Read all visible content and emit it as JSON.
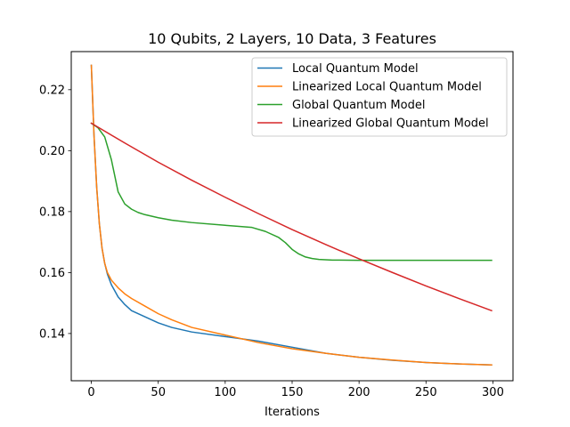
{
  "chart_data": {
    "type": "line",
    "title": "10 Qubits, 2 Layers, 10 Data, 3 Features",
    "xlabel": "Iterations",
    "ylabel": "",
    "xlim": [
      -15,
      315
    ],
    "ylim": [
      0.1245,
      0.2325
    ],
    "xticks": [
      0,
      50,
      100,
      150,
      200,
      250,
      300
    ],
    "yticks": [
      0.14,
      0.16,
      0.18,
      0.2,
      0.22
    ],
    "ytick_labels": [
      "0.14",
      "0.16",
      "0.18",
      "0.20",
      "0.22"
    ],
    "grid": false,
    "legend_position": "top-right",
    "series": [
      {
        "name": "Local Quantum Model",
        "color": "#1f77b4",
        "x": [
          0,
          2,
          4,
          6,
          8,
          10,
          12,
          15,
          20,
          25,
          30,
          40,
          50,
          60,
          75,
          100,
          125,
          150,
          175,
          200,
          225,
          250,
          275,
          299
        ],
        "y": [
          0.228,
          0.205,
          0.188,
          0.176,
          0.168,
          0.163,
          0.1595,
          0.156,
          0.152,
          0.1495,
          0.1475,
          0.1455,
          0.1435,
          0.142,
          0.1405,
          0.139,
          0.1375,
          0.1355,
          0.1335,
          0.1322,
          0.1312,
          0.1305,
          0.13,
          0.1297
        ]
      },
      {
        "name": "Linearized Local Quantum Model",
        "color": "#ff7f0e",
        "x": [
          0,
          2,
          4,
          6,
          8,
          10,
          12,
          15,
          20,
          25,
          30,
          40,
          50,
          60,
          75,
          100,
          125,
          150,
          175,
          200,
          225,
          250,
          275,
          299
        ],
        "y": [
          0.228,
          0.205,
          0.188,
          0.176,
          0.168,
          0.163,
          0.16,
          0.1575,
          0.155,
          0.153,
          0.1515,
          0.149,
          0.1465,
          0.1445,
          0.142,
          0.1395,
          0.137,
          0.135,
          0.1335,
          0.1322,
          0.1313,
          0.1305,
          0.13,
          0.1297
        ]
      },
      {
        "name": "Global Quantum Model",
        "color": "#2ca02c",
        "x": [
          0,
          5,
          10,
          15,
          20,
          25,
          30,
          35,
          40,
          50,
          60,
          75,
          100,
          120,
          130,
          140,
          145,
          150,
          155,
          160,
          165,
          170,
          180,
          200,
          250,
          299
        ],
        "y": [
          0.209,
          0.2075,
          0.2045,
          0.197,
          0.1865,
          0.1825,
          0.1808,
          0.1797,
          0.179,
          0.178,
          0.1772,
          0.1764,
          0.1755,
          0.1748,
          0.1735,
          0.1715,
          0.1698,
          0.1676,
          0.1661,
          0.1651,
          0.1646,
          0.1643,
          0.1641,
          0.164,
          0.164,
          0.164
        ]
      },
      {
        "name": "Linearized Global Quantum Model",
        "color": "#d62728",
        "x": [
          0,
          25,
          50,
          75,
          100,
          125,
          150,
          175,
          200,
          225,
          250,
          275,
          299
        ],
        "y": [
          0.209,
          0.2025,
          0.1962,
          0.1903,
          0.1847,
          0.1793,
          0.1741,
          0.1692,
          0.1645,
          0.16,
          0.1556,
          0.1514,
          0.1475
        ]
      }
    ]
  }
}
